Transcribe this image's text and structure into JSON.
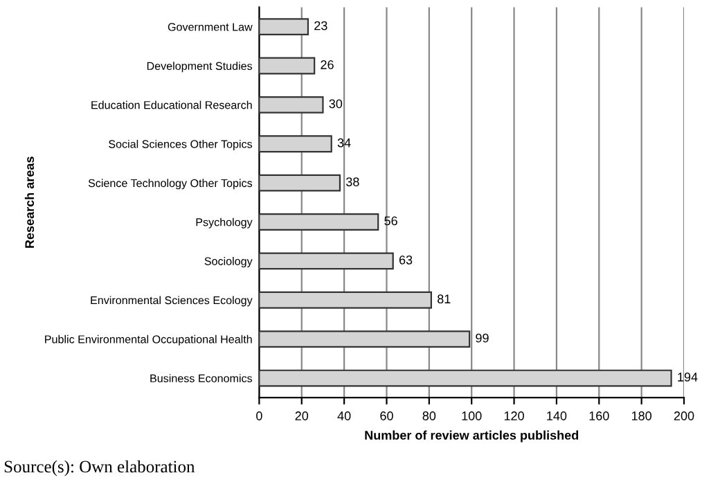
{
  "chart_data": {
    "type": "bar",
    "orientation": "horizontal",
    "ylabel": "Research areas",
    "xlabel": "Number of review articles published",
    "categories": [
      "Government Law",
      "Development Studies",
      "Education Educational Research",
      "Social Sciences Other Topics",
      "Science Technology Other Topics",
      "Psychology",
      "Sociology",
      "Environmental Sciences Ecology",
      "Public Environmental Occupational Health",
      "Business Economics"
    ],
    "values": [
      23,
      26,
      30,
      34,
      38,
      56,
      63,
      81,
      99,
      194
    ],
    "color": "#d4d4d4",
    "xlim": [
      0,
      200
    ],
    "xticks": [
      0,
      20,
      40,
      60,
      80,
      100,
      120,
      140,
      160,
      180,
      200
    ],
    "grid": "x",
    "data_labels": true,
    "annotations": [
      "Source(s): Own elaboration"
    ]
  }
}
